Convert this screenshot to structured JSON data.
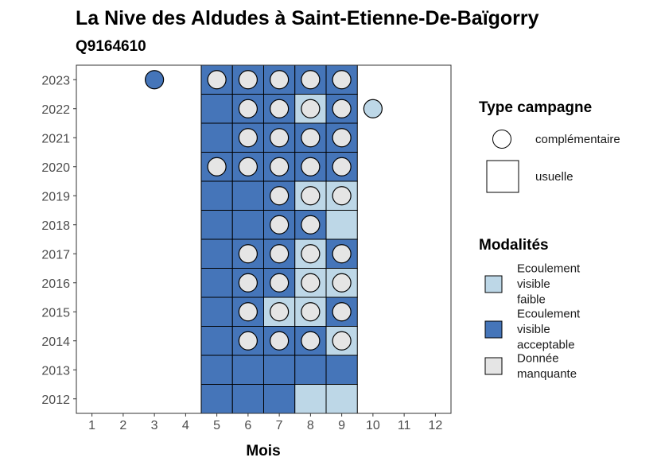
{
  "chart_data": {
    "type": "heatmap",
    "title": "La Nive des Aldudes à Saint-Etienne-De-Baïgorry",
    "subtitle": "Q9164610",
    "xlabel": "Mois",
    "ylabel": "",
    "x_ticks": [
      1,
      2,
      3,
      4,
      5,
      6,
      7,
      8,
      9,
      10,
      11,
      12
    ],
    "y_ticks": [
      2012,
      2013,
      2014,
      2015,
      2016,
      2017,
      2018,
      2019,
      2020,
      2021,
      2022,
      2023
    ],
    "xlim": [
      0.5,
      12.5
    ],
    "ylim": [
      2011.5,
      2023.5
    ],
    "grid": false,
    "legend_position": "right",
    "colors": {
      "faible": "#bdd7e7",
      "acceptable": "#4575b9",
      "manquante": "#e5e5e5"
    },
    "legend_type": {
      "title": "Type campagne",
      "items": [
        {
          "key": "complementaire",
          "label": "complémentaire",
          "shape": "circle"
        },
        {
          "key": "usuelle",
          "label": "usuelle",
          "shape": "square"
        }
      ]
    },
    "legend_modalites": {
      "title": "Modalités",
      "items": [
        {
          "key": "faible",
          "lines": [
            "Ecoulement",
            "visible",
            "faible"
          ]
        },
        {
          "key": "acceptable",
          "lines": [
            "Ecoulement",
            "visible",
            "acceptable"
          ]
        },
        {
          "key": "manquante",
          "lines": [
            "Donnée",
            "manquante"
          ]
        }
      ]
    },
    "cells": [
      {
        "year": 2023,
        "month": 5,
        "modalite": "acceptable"
      },
      {
        "year": 2023,
        "month": 6,
        "modalite": "acceptable"
      },
      {
        "year": 2023,
        "month": 7,
        "modalite": "acceptable"
      },
      {
        "year": 2023,
        "month": 8,
        "modalite": "acceptable"
      },
      {
        "year": 2023,
        "month": 9,
        "modalite": "acceptable"
      },
      {
        "year": 2022,
        "month": 5,
        "modalite": "acceptable"
      },
      {
        "year": 2022,
        "month": 6,
        "modalite": "acceptable"
      },
      {
        "year": 2022,
        "month": 7,
        "modalite": "acceptable"
      },
      {
        "year": 2022,
        "month": 8,
        "modalite": "faible"
      },
      {
        "year": 2022,
        "month": 9,
        "modalite": "acceptable"
      },
      {
        "year": 2021,
        "month": 5,
        "modalite": "acceptable"
      },
      {
        "year": 2021,
        "month": 6,
        "modalite": "acceptable"
      },
      {
        "year": 2021,
        "month": 7,
        "modalite": "acceptable"
      },
      {
        "year": 2021,
        "month": 8,
        "modalite": "acceptable"
      },
      {
        "year": 2021,
        "month": 9,
        "modalite": "acceptable"
      },
      {
        "year": 2020,
        "month": 5,
        "modalite": "acceptable"
      },
      {
        "year": 2020,
        "month": 6,
        "modalite": "acceptable"
      },
      {
        "year": 2020,
        "month": 7,
        "modalite": "acceptable"
      },
      {
        "year": 2020,
        "month": 8,
        "modalite": "acceptable"
      },
      {
        "year": 2020,
        "month": 9,
        "modalite": "acceptable"
      },
      {
        "year": 2019,
        "month": 5,
        "modalite": "acceptable"
      },
      {
        "year": 2019,
        "month": 6,
        "modalite": "acceptable"
      },
      {
        "year": 2019,
        "month": 7,
        "modalite": "acceptable"
      },
      {
        "year": 2019,
        "month": 8,
        "modalite": "faible"
      },
      {
        "year": 2019,
        "month": 9,
        "modalite": "faible"
      },
      {
        "year": 2018,
        "month": 5,
        "modalite": "acceptable"
      },
      {
        "year": 2018,
        "month": 6,
        "modalite": "acceptable"
      },
      {
        "year": 2018,
        "month": 7,
        "modalite": "acceptable"
      },
      {
        "year": 2018,
        "month": 8,
        "modalite": "acceptable"
      },
      {
        "year": 2018,
        "month": 9,
        "modalite": "faible"
      },
      {
        "year": 2017,
        "month": 5,
        "modalite": "acceptable"
      },
      {
        "year": 2017,
        "month": 6,
        "modalite": "acceptable"
      },
      {
        "year": 2017,
        "month": 7,
        "modalite": "acceptable"
      },
      {
        "year": 2017,
        "month": 8,
        "modalite": "faible"
      },
      {
        "year": 2017,
        "month": 9,
        "modalite": "acceptable"
      },
      {
        "year": 2016,
        "month": 5,
        "modalite": "acceptable"
      },
      {
        "year": 2016,
        "month": 6,
        "modalite": "acceptable"
      },
      {
        "year": 2016,
        "month": 7,
        "modalite": "acceptable"
      },
      {
        "year": 2016,
        "month": 8,
        "modalite": "faible"
      },
      {
        "year": 2016,
        "month": 9,
        "modalite": "faible"
      },
      {
        "year": 2015,
        "month": 5,
        "modalite": "acceptable"
      },
      {
        "year": 2015,
        "month": 6,
        "modalite": "acceptable"
      },
      {
        "year": 2015,
        "month": 7,
        "modalite": "faible"
      },
      {
        "year": 2015,
        "month": 8,
        "modalite": "faible"
      },
      {
        "year": 2015,
        "month": 9,
        "modalite": "acceptable"
      },
      {
        "year": 2014,
        "month": 5,
        "modalite": "acceptable"
      },
      {
        "year": 2014,
        "month": 6,
        "modalite": "acceptable"
      },
      {
        "year": 2014,
        "month": 7,
        "modalite": "acceptable"
      },
      {
        "year": 2014,
        "month": 8,
        "modalite": "acceptable"
      },
      {
        "year": 2014,
        "month": 9,
        "modalite": "faible"
      },
      {
        "year": 2013,
        "month": 5,
        "modalite": "acceptable"
      },
      {
        "year": 2013,
        "month": 6,
        "modalite": "acceptable"
      },
      {
        "year": 2013,
        "month": 7,
        "modalite": "acceptable"
      },
      {
        "year": 2013,
        "month": 8,
        "modalite": "acceptable"
      },
      {
        "year": 2013,
        "month": 9,
        "modalite": "acceptable"
      },
      {
        "year": 2012,
        "month": 5,
        "modalite": "acceptable"
      },
      {
        "year": 2012,
        "month": 6,
        "modalite": "acceptable"
      },
      {
        "year": 2012,
        "month": 7,
        "modalite": "acceptable"
      },
      {
        "year": 2012,
        "month": 8,
        "modalite": "faible"
      },
      {
        "year": 2012,
        "month": 9,
        "modalite": "faible"
      }
    ],
    "points": [
      {
        "year": 2023,
        "month": 3,
        "modalite": "acceptable"
      },
      {
        "year": 2023,
        "month": 5,
        "modalite": "manquante"
      },
      {
        "year": 2023,
        "month": 6,
        "modalite": "manquante"
      },
      {
        "year": 2023,
        "month": 7,
        "modalite": "manquante"
      },
      {
        "year": 2023,
        "month": 8,
        "modalite": "manquante"
      },
      {
        "year": 2023,
        "month": 9,
        "modalite": "manquante"
      },
      {
        "year": 2022,
        "month": 6,
        "modalite": "manquante"
      },
      {
        "year": 2022,
        "month": 7,
        "modalite": "manquante"
      },
      {
        "year": 2022,
        "month": 8,
        "modalite": "manquante"
      },
      {
        "year": 2022,
        "month": 9,
        "modalite": "manquante"
      },
      {
        "year": 2022,
        "month": 10,
        "modalite": "faible"
      },
      {
        "year": 2021,
        "month": 6,
        "modalite": "manquante"
      },
      {
        "year": 2021,
        "month": 7,
        "modalite": "manquante"
      },
      {
        "year": 2021,
        "month": 8,
        "modalite": "manquante"
      },
      {
        "year": 2021,
        "month": 9,
        "modalite": "manquante"
      },
      {
        "year": 2020,
        "month": 5,
        "modalite": "manquante"
      },
      {
        "year": 2020,
        "month": 6,
        "modalite": "manquante"
      },
      {
        "year": 2020,
        "month": 7,
        "modalite": "manquante"
      },
      {
        "year": 2020,
        "month": 8,
        "modalite": "manquante"
      },
      {
        "year": 2020,
        "month": 9,
        "modalite": "manquante"
      },
      {
        "year": 2019,
        "month": 7,
        "modalite": "manquante"
      },
      {
        "year": 2019,
        "month": 8,
        "modalite": "manquante"
      },
      {
        "year": 2019,
        "month": 9,
        "modalite": "manquante"
      },
      {
        "year": 2018,
        "month": 7,
        "modalite": "manquante"
      },
      {
        "year": 2018,
        "month": 8,
        "modalite": "manquante"
      },
      {
        "year": 2017,
        "month": 6,
        "modalite": "manquante"
      },
      {
        "year": 2017,
        "month": 7,
        "modalite": "manquante"
      },
      {
        "year": 2017,
        "month": 8,
        "modalite": "manquante"
      },
      {
        "year": 2017,
        "month": 9,
        "modalite": "manquante"
      },
      {
        "year": 2016,
        "month": 6,
        "modalite": "manquante"
      },
      {
        "year": 2016,
        "month": 7,
        "modalite": "manquante"
      },
      {
        "year": 2016,
        "month": 8,
        "modalite": "manquante"
      },
      {
        "year": 2016,
        "month": 9,
        "modalite": "manquante"
      },
      {
        "year": 2015,
        "month": 6,
        "modalite": "manquante"
      },
      {
        "year": 2015,
        "month": 7,
        "modalite": "manquante"
      },
      {
        "year": 2015,
        "month": 8,
        "modalite": "manquante"
      },
      {
        "year": 2015,
        "month": 9,
        "modalite": "manquante"
      },
      {
        "year": 2014,
        "month": 6,
        "modalite": "manquante"
      },
      {
        "year": 2014,
        "month": 7,
        "modalite": "manquante"
      },
      {
        "year": 2014,
        "month": 8,
        "modalite": "manquante"
      },
      {
        "year": 2014,
        "month": 9,
        "modalite": "manquante"
      }
    ]
  }
}
